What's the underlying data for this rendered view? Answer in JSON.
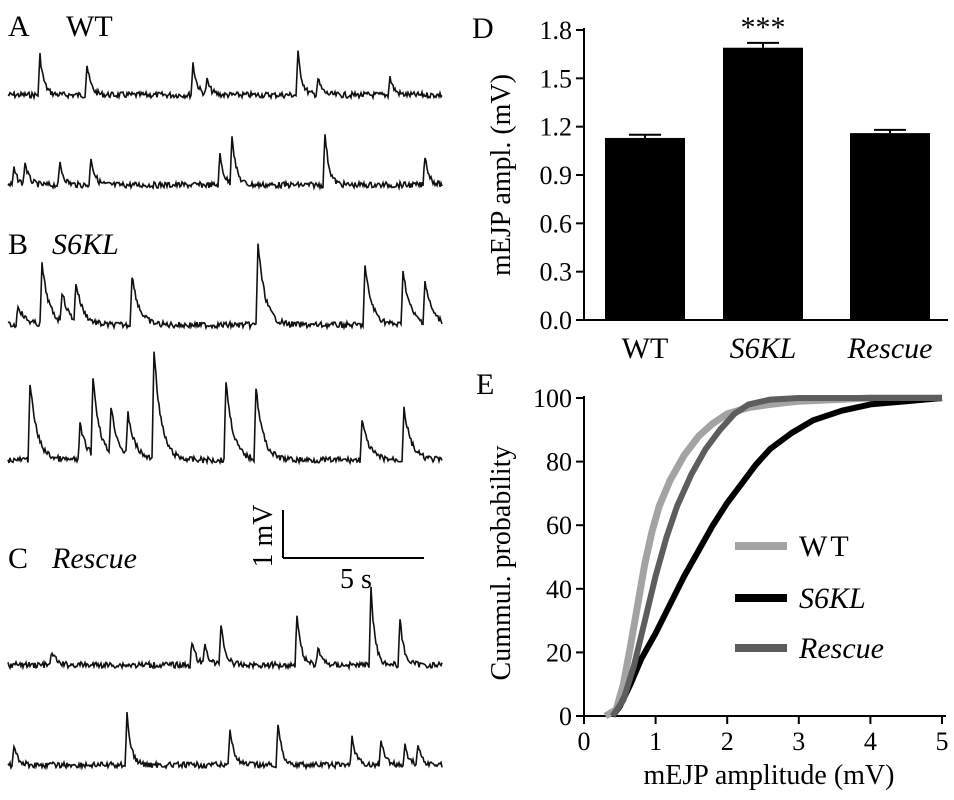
{
  "panels": {
    "A": {
      "letter": "A",
      "label": "WT"
    },
    "B": {
      "letter": "B",
      "label": "S6KL"
    },
    "C": {
      "letter": "C",
      "label": "Rescue"
    },
    "D": {
      "letter": "D"
    },
    "E": {
      "letter": "E"
    }
  },
  "scale_bar": {
    "vertical_label": "1 mV",
    "horizontal_label": "5 s"
  },
  "colors": {
    "WT": "#a3a3a3",
    "S6KL": "#000000",
    "Rescue": "#5d5d5d",
    "trace": "#111111",
    "bar": "#000000"
  },
  "chart_data": [
    {
      "panel": "D",
      "type": "bar",
      "categories": [
        "WT",
        "S6KL",
        "Rescue"
      ],
      "values": [
        1.13,
        1.69,
        1.16
      ],
      "errors": [
        0.02,
        0.03,
        0.02
      ],
      "significance": [
        "",
        "***",
        ""
      ],
      "ylabel": "mEJP ampl. (mV)",
      "ylim": [
        0.0,
        1.8
      ],
      "yticks": [
        "0.0",
        "0.3",
        "0.6",
        "0.9",
        "1.2",
        "1.5",
        "1.8"
      ]
    },
    {
      "panel": "E",
      "type": "line",
      "xlabel": "mEJP amplitude (mV)",
      "ylabel": "Cummul. probability",
      "xlim": [
        0,
        5
      ],
      "ylim": [
        0,
        100
      ],
      "xticks": [
        "0",
        "1",
        "2",
        "3",
        "4",
        "5"
      ],
      "yticks": [
        "0",
        "20",
        "40",
        "60",
        "80",
        "100"
      ],
      "legend_position": "bottom-right",
      "series": [
        {
          "name": "WT",
          "points": [
            [
              0.3,
              0
            ],
            [
              0.45,
              2
            ],
            [
              0.55,
              10
            ],
            [
              0.65,
              22
            ],
            [
              0.75,
              35
            ],
            [
              0.85,
              48
            ],
            [
              0.95,
              58
            ],
            [
              1.05,
              66
            ],
            [
              1.2,
              74
            ],
            [
              1.4,
              82
            ],
            [
              1.6,
              88
            ],
            [
              1.8,
              92
            ],
            [
              2.0,
              95
            ],
            [
              2.3,
              97
            ],
            [
              2.6,
              98
            ],
            [
              3.0,
              99
            ],
            [
              4.0,
              100
            ],
            [
              5.0,
              100
            ]
          ]
        },
        {
          "name": "S6KL",
          "points": [
            [
              0.4,
              0
            ],
            [
              0.5,
              3
            ],
            [
              0.65,
              10
            ],
            [
              0.8,
              18
            ],
            [
              1.0,
              26
            ],
            [
              1.2,
              35
            ],
            [
              1.4,
              44
            ],
            [
              1.6,
              52
            ],
            [
              1.8,
              60
            ],
            [
              2.0,
              67
            ],
            [
              2.2,
              73
            ],
            [
              2.4,
              79
            ],
            [
              2.6,
              84
            ],
            [
              2.9,
              89
            ],
            [
              3.2,
              93
            ],
            [
              3.6,
              96
            ],
            [
              4.0,
              98
            ],
            [
              4.5,
              99
            ],
            [
              5.0,
              100
            ]
          ]
        },
        {
          "name": "Rescue",
          "points": [
            [
              0.4,
              0
            ],
            [
              0.55,
              5
            ],
            [
              0.7,
              16
            ],
            [
              0.85,
              30
            ],
            [
              1.0,
              44
            ],
            [
              1.15,
              56
            ],
            [
              1.3,
              66
            ],
            [
              1.5,
              76
            ],
            [
              1.7,
              84
            ],
            [
              1.9,
              90
            ],
            [
              2.1,
              95
            ],
            [
              2.3,
              98
            ],
            [
              2.6,
              99.5
            ],
            [
              3.0,
              100
            ],
            [
              5.0,
              100
            ]
          ]
        }
      ]
    }
  ]
}
